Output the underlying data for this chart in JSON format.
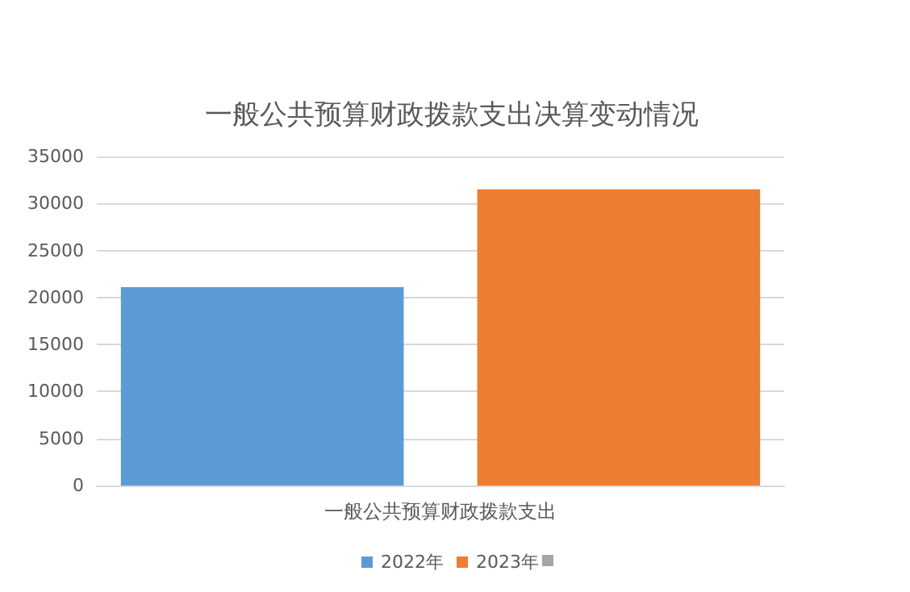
{
  "chart_data": {
    "type": "bar",
    "title": "一般公共预算财政拨款支出决算变动情况",
    "categories": [
      "一般公共预算财政拨款支出"
    ],
    "series": [
      {
        "name": "2022年",
        "color": "#5b9bd5",
        "values": [
          21100
        ]
      },
      {
        "name": "2023年",
        "color": "#ed7d31",
        "values": [
          31500
        ]
      }
    ],
    "ylim": [
      0,
      35000
    ],
    "yticks": [
      0,
      5000,
      10000,
      15000,
      20000,
      25000,
      30000,
      35000
    ],
    "grid": "y",
    "legend": "bottom"
  }
}
